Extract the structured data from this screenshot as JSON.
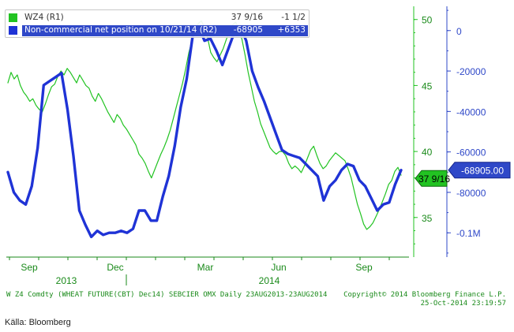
{
  "chart_data": {
    "type": "line",
    "x_ticks": [
      "Sep",
      "Dec",
      "Mar",
      "Jun",
      "Sep"
    ],
    "year_labels": [
      "2013",
      "2014"
    ],
    "right_axis_1": {
      "ticks": [
        "50",
        "45",
        "40",
        "35"
      ],
      "range": [
        32,
        51
      ]
    },
    "right_axis_2": {
      "ticks": [
        "0",
        "-20000",
        "-40000",
        "-60000",
        "-80000",
        "-0.1M"
      ],
      "range": [
        -112000,
        12000
      ]
    },
    "series": [
      {
        "name": "WZ4 (R1)",
        "axis": "right_axis_1",
        "color": "#22c322",
        "current_label": "37 9/16",
        "values": [
          45.2,
          46,
          45.5,
          45.8,
          45,
          44.5,
          44.2,
          43.8,
          44,
          43.5,
          43.2,
          43,
          43.6,
          44.3,
          44.9,
          45.1,
          45.7,
          46.1,
          45.8,
          46.3,
          46,
          45.6,
          45.2,
          45.8,
          45.4,
          45,
          44.8,
          44.2,
          43.8,
          44.4,
          44,
          43.5,
          43,
          42.6,
          42.2,
          42.8,
          42.5,
          42,
          41.7,
          41.3,
          40.9,
          40.5,
          39.8,
          39.5,
          39.1,
          38.5,
          38,
          38.6,
          39.2,
          39.8,
          40.3,
          40.9,
          41.6,
          42.5,
          43.4,
          44.3,
          45.2,
          46.3,
          47.5,
          48.4,
          49.2,
          49.7,
          49.9,
          49.4,
          48.6,
          47.5,
          47.1,
          46.8,
          47.3,
          47.8,
          48.5,
          49.1,
          49.6,
          49.8,
          49.3,
          48.5,
          47.3,
          46,
          44.9,
          43.8,
          43,
          42.1,
          41.5,
          40.9,
          40.3,
          40,
          39.8,
          40,
          40,
          39.7,
          39.1,
          38.7,
          38.9,
          38.7,
          38.4,
          38.9,
          39.5,
          40.1,
          40.4,
          39.7,
          39.1,
          38.7,
          38.9,
          39.3,
          39.6,
          39.9,
          39.7,
          39.5,
          39.3,
          38.7,
          38,
          37,
          36,
          35.3,
          34.5,
          34.1,
          34.3,
          34.6,
          35.1,
          35.6,
          36.2,
          36.8,
          37.5,
          37.8,
          38.5,
          38.8,
          38.2
        ]
      },
      {
        "name": "Non-commercial net position on 10/21/14 (R2)",
        "axis": "right_axis_2",
        "color": "#1f33d6",
        "current_label": "-68905.00",
        "values": [
          -70000,
          -80000,
          -84000,
          -86000,
          -77000,
          -58000,
          -27000,
          -25000,
          -23000,
          -21000,
          -39000,
          -62000,
          -89000,
          -96000,
          -102000,
          -99000,
          -101000,
          -100000,
          -100000,
          -99000,
          -100000,
          -98000,
          -89000,
          -89000,
          -94000,
          -94000,
          -82000,
          -72000,
          -57000,
          -38000,
          -24000,
          -3000,
          2000,
          -5000,
          -4000,
          -10000,
          -17000,
          -9000,
          -1000,
          2000,
          -5000,
          -20000,
          -28000,
          -35000,
          -43000,
          -51000,
          -59000,
          -61000,
          -62000,
          -63000,
          -66000,
          -69000,
          -72000,
          -84000,
          -77000,
          -74000,
          -69000,
          -66000,
          -67000,
          -74000,
          -77000,
          -83000,
          -89000,
          -86000,
          -85000,
          -76000,
          -69000
        ]
      }
    ],
    "footer_left": "W Z4 Comdty (WHEAT FUTURE(CBT) Dec14) SEBCIER OMX  Daily 23AUG2013-23AUG2014",
    "footer_right_1": "Copyright© 2014 Bloomberg Finance L.P.",
    "footer_right_2": "25-Oct-2014 23:19:57",
    "legend": {
      "r1_name": "WZ4 (R1)",
      "r1_val1": "37 9/16",
      "r1_val2": "-1 1/2",
      "r2_name": "Non-commercial net position on 10/21/14 (R2)",
      "r2_val1": "-68905",
      "r2_val2": "+6353"
    },
    "source": "Källa: Bloomberg"
  },
  "colors": {
    "green": "#22c322",
    "blue": "#1f33d6",
    "axis_blue": "#2f48c8"
  }
}
